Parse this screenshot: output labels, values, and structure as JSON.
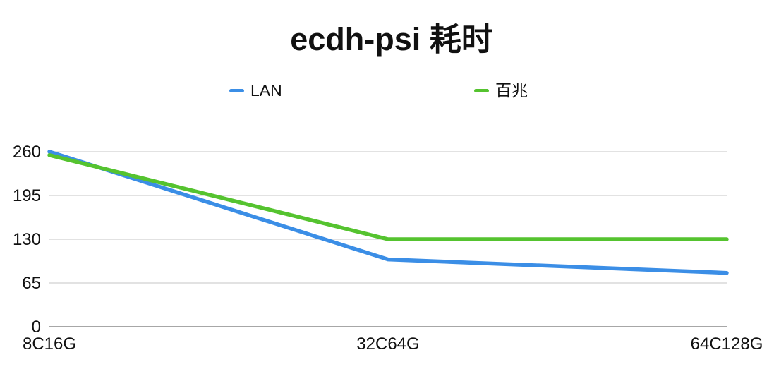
{
  "title": "ecdh-psi 耗时",
  "chart_data": {
    "type": "line",
    "title": "ecdh-psi 耗时",
    "categories": [
      "8C16G",
      "32C64G",
      "64C128G"
    ],
    "series": [
      {
        "name": "LAN",
        "color": "#3B8EE6",
        "values": [
          260,
          100,
          80
        ]
      },
      {
        "name": "百兆",
        "color": "#55C32F",
        "values": [
          255,
          130,
          130
        ]
      }
    ],
    "xlabel": "",
    "ylabel": "",
    "ylim": [
      0,
      260
    ],
    "yticks": [
      0,
      65,
      130,
      195,
      260
    ],
    "grid": true,
    "legend_position": "top"
  },
  "colors": {
    "grid": "#d9d9d9",
    "axis": "#a7a7a7",
    "text": "#111111",
    "background": "#ffffff"
  }
}
